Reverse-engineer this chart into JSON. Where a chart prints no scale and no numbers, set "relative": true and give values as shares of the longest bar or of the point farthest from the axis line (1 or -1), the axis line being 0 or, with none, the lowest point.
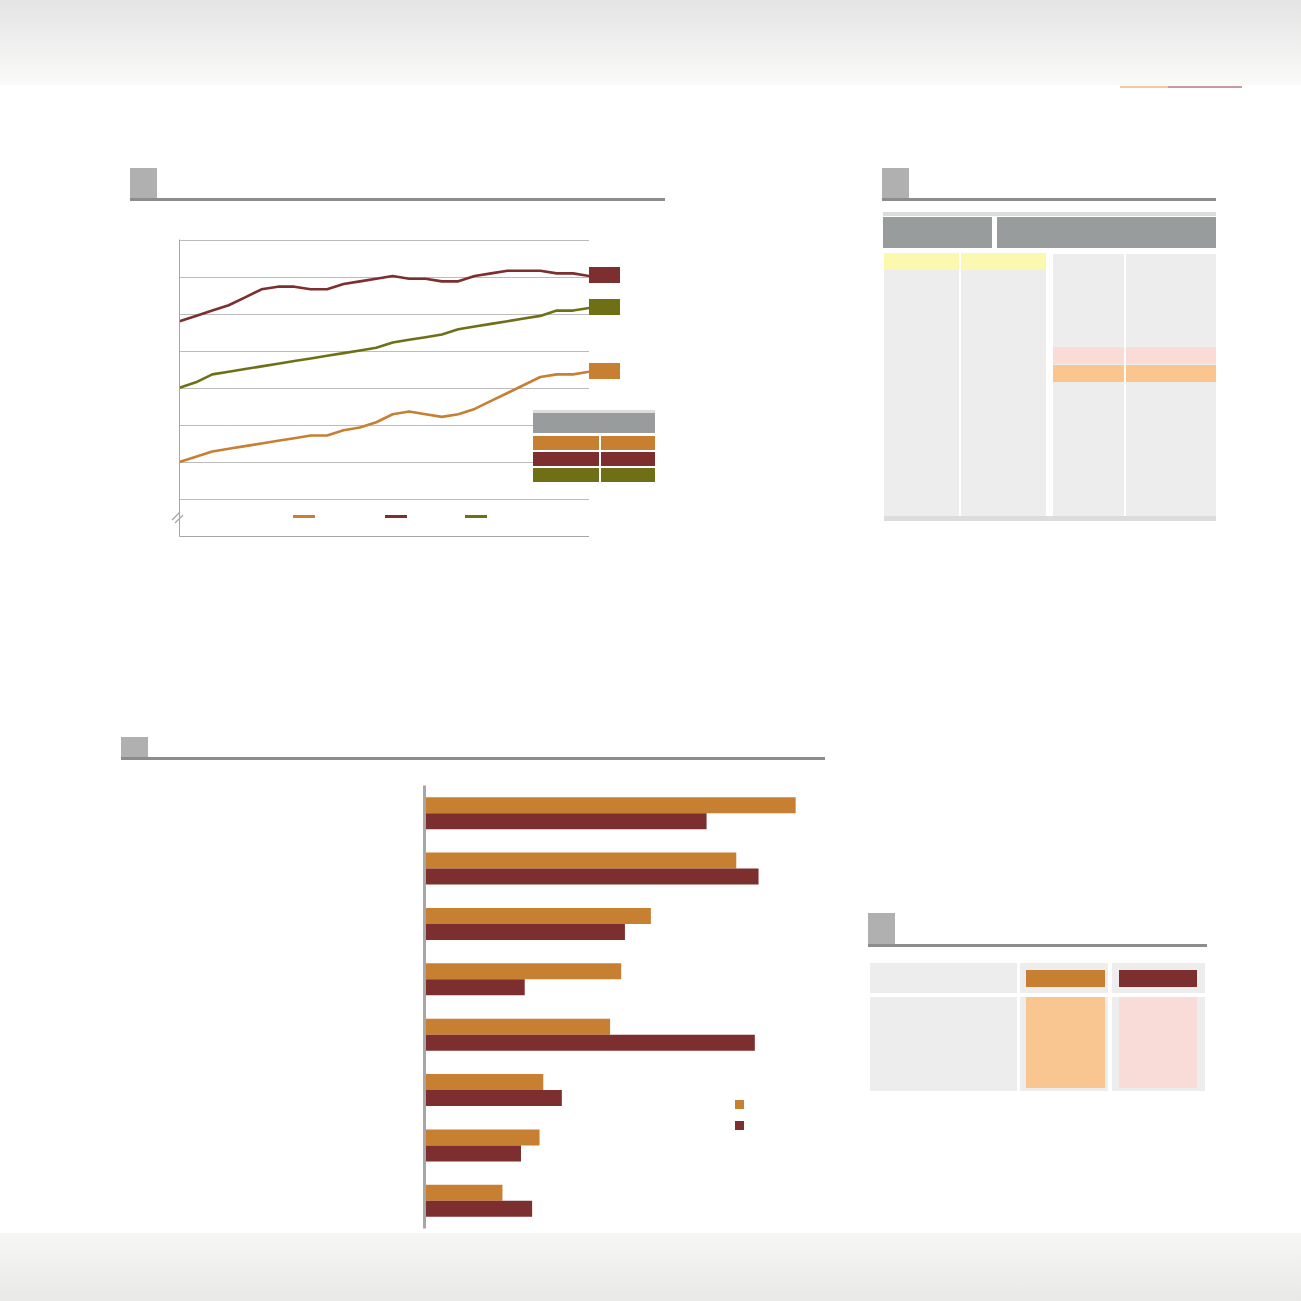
{
  "chart_data": [
    {
      "type": "line",
      "relative": true,
      "categories": [
        null,
        null,
        null,
        null,
        null,
        null,
        null,
        null,
        null,
        null,
        null,
        null,
        null,
        null,
        null,
        null,
        null,
        null,
        null,
        null,
        null,
        null,
        null,
        null,
        null,
        null
      ],
      "series": [
        {
          "color": "#c77f32",
          "values": [
            0.28,
            0.3,
            0.32,
            0.33,
            0.34,
            0.35,
            0.36,
            0.37,
            0.38,
            0.38,
            0.4,
            0.41,
            0.43,
            0.46,
            0.47,
            0.46,
            0.45,
            0.46,
            0.48,
            0.51,
            0.54,
            0.57,
            0.6,
            0.61,
            0.61,
            0.62
          ]
        },
        {
          "color": "#7d2e2f",
          "values": [
            0.81,
            0.83,
            0.85,
            0.87,
            0.9,
            0.93,
            0.94,
            0.94,
            0.93,
            0.93,
            0.95,
            0.96,
            0.97,
            0.98,
            0.97,
            0.97,
            0.96,
            0.96,
            0.98,
            0.99,
            1.0,
            1.0,
            1.0,
            0.99,
            0.99,
            0.98
          ]
        },
        {
          "color": "#6f7016",
          "values": [
            0.56,
            0.58,
            0.61,
            0.62,
            0.63,
            0.64,
            0.65,
            0.66,
            0.67,
            0.68,
            0.69,
            0.7,
            0.71,
            0.73,
            0.74,
            0.75,
            0.76,
            0.78,
            0.79,
            0.8,
            0.81,
            0.82,
            0.83,
            0.85,
            0.85,
            0.86
          ]
        }
      ],
      "grid": "y"
    },
    {
      "type": "bar",
      "orientation": "horizontal",
      "relative": true,
      "categories": [
        null,
        null,
        null,
        null,
        null,
        null,
        null,
        null
      ],
      "series": [
        {
          "color": "#c77f32",
          "values": [
            1.0,
            0.84,
            0.61,
            0.53,
            0.5,
            0.32,
            0.31,
            0.21
          ]
        },
        {
          "color": "#7d2e2f",
          "values": [
            0.76,
            0.9,
            0.54,
            0.27,
            0.89,
            0.37,
            0.26,
            0.29
          ]
        }
      ]
    }
  ]
}
